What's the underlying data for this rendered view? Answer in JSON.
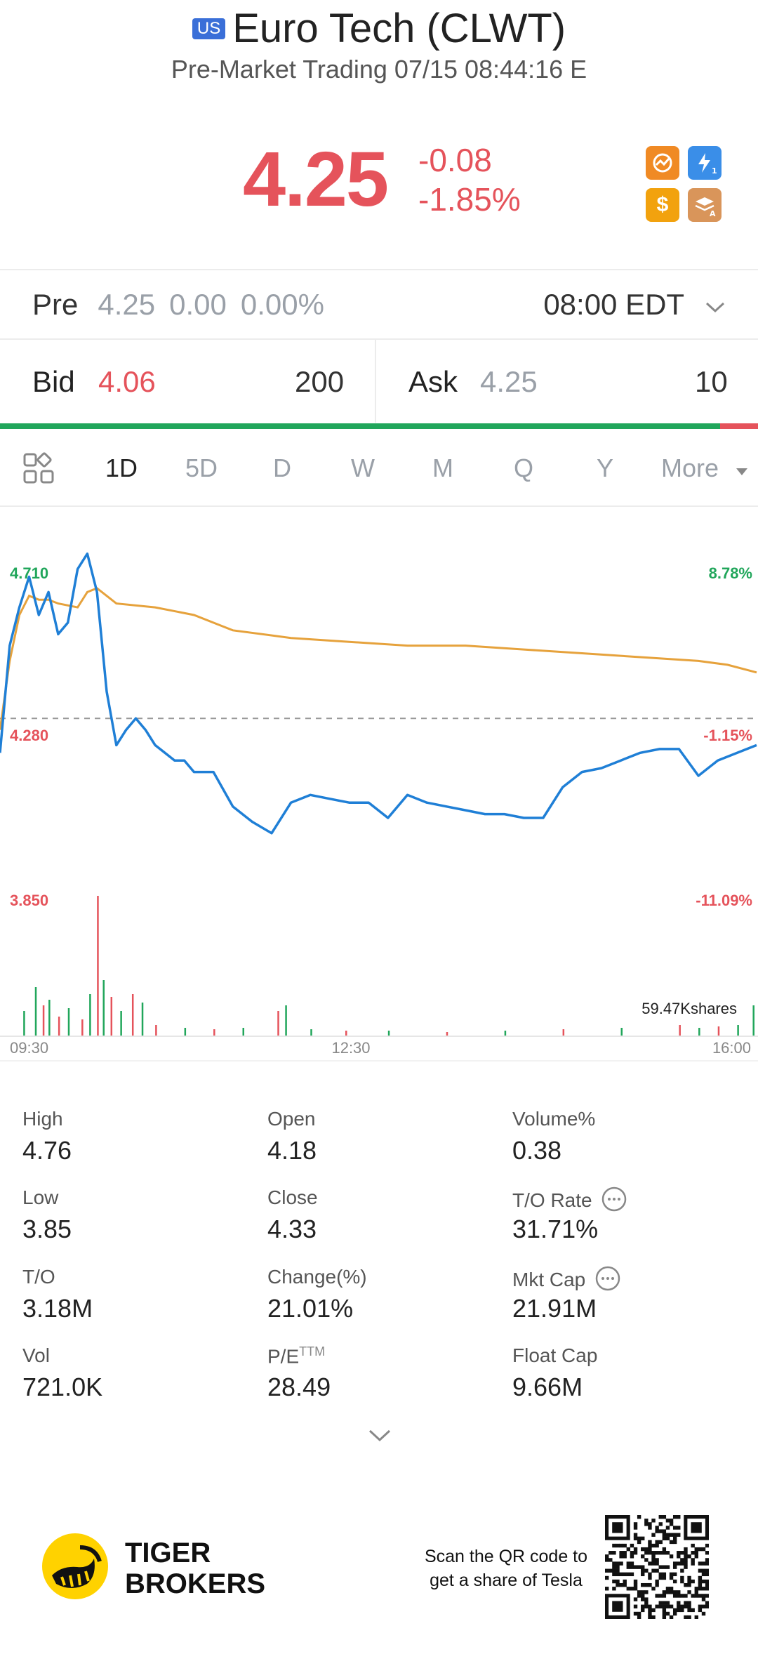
{
  "header": {
    "market_badge": "US",
    "title": "Euro Tech (CLWT)",
    "subtitle": "Pre-Market Trading 07/15 08:44:16 E"
  },
  "quote": {
    "price": "4.25",
    "change": "-0.08",
    "change_pct": "-1.85%",
    "price_color": "#e5535b",
    "icons": [
      "trend-chart-icon",
      "lightning-l1-icon",
      "dollar-icon",
      "layers-a-icon"
    ]
  },
  "pre_market": {
    "label": "Pre",
    "price": "4.25",
    "change": "0.00",
    "change_pct": "0.00%",
    "time": "08:00 EDT"
  },
  "order_book": {
    "bid_label": "Bid",
    "bid_price": "4.06",
    "bid_size": "200",
    "ask_label": "Ask",
    "ask_price": "4.25",
    "ask_size": "10",
    "bid_share": 0.95,
    "bid_color": "#21a65b",
    "ask_color": "#e5535b"
  },
  "chart_tabs": {
    "items": [
      "1D",
      "5D",
      "D",
      "W",
      "M",
      "Q",
      "Y",
      "More"
    ],
    "active": "1D"
  },
  "chart_data": {
    "type": "line",
    "y_labels_left": [
      "4.710",
      "4.280",
      "3.850"
    ],
    "y_labels_right": [
      "8.78%",
      "-1.15%",
      "-11.09%"
    ],
    "x_labels": [
      "09:30",
      "12:30",
      "16:00"
    ],
    "volume_label": "59.47Kshares",
    "ylim": [
      3.85,
      4.71
    ],
    "reference_line": 4.33,
    "series": [
      {
        "color": "#1f7fd6",
        "x": [
          0,
          5,
          10,
          15,
          20,
          25,
          30,
          35,
          40,
          45,
          50,
          55,
          60,
          65,
          70,
          75,
          80,
          85,
          90,
          95,
          100,
          110,
          120,
          130,
          140,
          150,
          160,
          170,
          180,
          190,
          200,
          210,
          220,
          230,
          240,
          250,
          260,
          270,
          280,
          290,
          300,
          310,
          320,
          330,
          340,
          350,
          360,
          370,
          380,
          390
        ],
        "values": [
          4.24,
          4.52,
          4.62,
          4.7,
          4.6,
          4.66,
          4.55,
          4.58,
          4.72,
          4.76,
          4.66,
          4.4,
          4.26,
          4.3,
          4.33,
          4.3,
          4.26,
          4.24,
          4.22,
          4.22,
          4.19,
          4.19,
          4.1,
          4.06,
          4.03,
          4.11,
          4.13,
          4.12,
          4.11,
          4.11,
          4.07,
          4.13,
          4.11,
          4.1,
          4.09,
          4.08,
          4.08,
          4.07,
          4.07,
          4.15,
          4.19,
          4.2,
          4.22,
          4.24,
          4.25,
          4.25,
          4.18,
          4.22,
          4.24,
          4.26
        ]
      },
      {
        "color": "#e6a23c",
        "x": [
          0,
          5,
          10,
          15,
          20,
          25,
          30,
          40,
          45,
          50,
          55,
          60,
          80,
          100,
          120,
          150,
          180,
          210,
          240,
          270,
          300,
          330,
          360,
          375,
          390
        ],
        "values": [
          4.3,
          4.48,
          4.6,
          4.65,
          4.64,
          4.64,
          4.63,
          4.62,
          4.66,
          4.67,
          4.65,
          4.63,
          4.62,
          4.6,
          4.56,
          4.54,
          4.53,
          4.52,
          4.52,
          4.51,
          4.5,
          4.49,
          4.48,
          4.47,
          4.45
        ]
      }
    ],
    "volume_bars": [
      {
        "x": 12,
        "v": 18,
        "c": "#21a65b"
      },
      {
        "x": 18,
        "v": 35,
        "c": "#21a65b"
      },
      {
        "x": 22,
        "v": 22,
        "c": "#e5535b"
      },
      {
        "x": 25,
        "v": 26,
        "c": "#21a65b"
      },
      {
        "x": 30,
        "v": 14,
        "c": "#e5535b"
      },
      {
        "x": 35,
        "v": 20,
        "c": "#21a65b"
      },
      {
        "x": 42,
        "v": 12,
        "c": "#e5535b"
      },
      {
        "x": 46,
        "v": 30,
        "c": "#21a65b"
      },
      {
        "x": 50,
        "v": 100,
        "c": "#e5535b"
      },
      {
        "x": 53,
        "v": 40,
        "c": "#21a65b"
      },
      {
        "x": 57,
        "v": 28,
        "c": "#e5535b"
      },
      {
        "x": 62,
        "v": 18,
        "c": "#21a65b"
      },
      {
        "x": 68,
        "v": 30,
        "c": "#e5535b"
      },
      {
        "x": 73,
        "v": 24,
        "c": "#21a65b"
      },
      {
        "x": 80,
        "v": 8,
        "c": "#e5535b"
      },
      {
        "x": 95,
        "v": 6,
        "c": "#21a65b"
      },
      {
        "x": 110,
        "v": 5,
        "c": "#e5535b"
      },
      {
        "x": 125,
        "v": 6,
        "c": "#21a65b"
      },
      {
        "x": 143,
        "v": 18,
        "c": "#e5535b"
      },
      {
        "x": 147,
        "v": 22,
        "c": "#21a65b"
      },
      {
        "x": 160,
        "v": 5,
        "c": "#21a65b"
      },
      {
        "x": 178,
        "v": 4,
        "c": "#e5535b"
      },
      {
        "x": 200,
        "v": 4,
        "c": "#21a65b"
      },
      {
        "x": 230,
        "v": 3,
        "c": "#e5535b"
      },
      {
        "x": 260,
        "v": 4,
        "c": "#21a65b"
      },
      {
        "x": 290,
        "v": 5,
        "c": "#e5535b"
      },
      {
        "x": 320,
        "v": 6,
        "c": "#21a65b"
      },
      {
        "x": 350,
        "v": 8,
        "c": "#e5535b"
      },
      {
        "x": 360,
        "v": 6,
        "c": "#21a65b"
      },
      {
        "x": 370,
        "v": 7,
        "c": "#e5535b"
      },
      {
        "x": 380,
        "v": 8,
        "c": "#21a65b"
      },
      {
        "x": 388,
        "v": 22,
        "c": "#21a65b"
      }
    ]
  },
  "stats": [
    {
      "label": "High",
      "value": "4.76"
    },
    {
      "label": "Open",
      "value": "4.18"
    },
    {
      "label": "Volume%",
      "value": "0.38"
    },
    {
      "label": "Low",
      "value": "3.85"
    },
    {
      "label": "Close",
      "value": "4.33"
    },
    {
      "label": "T/O Rate",
      "value": "31.71%"
    },
    {
      "label": "T/O",
      "value": "3.18M"
    },
    {
      "label": "Change(%)",
      "value": "21.01%"
    },
    {
      "label": "Mkt Cap",
      "value": "21.91M"
    },
    {
      "label": "Vol",
      "value": "721.0K"
    },
    {
      "label": "P/E",
      "label_sup": "TTM",
      "value": "28.49"
    },
    {
      "label": "Float Cap",
      "value": "9.66M"
    }
  ],
  "footer": {
    "brand_line1": "TIGER",
    "brand_line2": "BROKERS",
    "qr_text_line1": "Scan the QR code to",
    "qr_text_line2": "get a share of Tesla"
  }
}
